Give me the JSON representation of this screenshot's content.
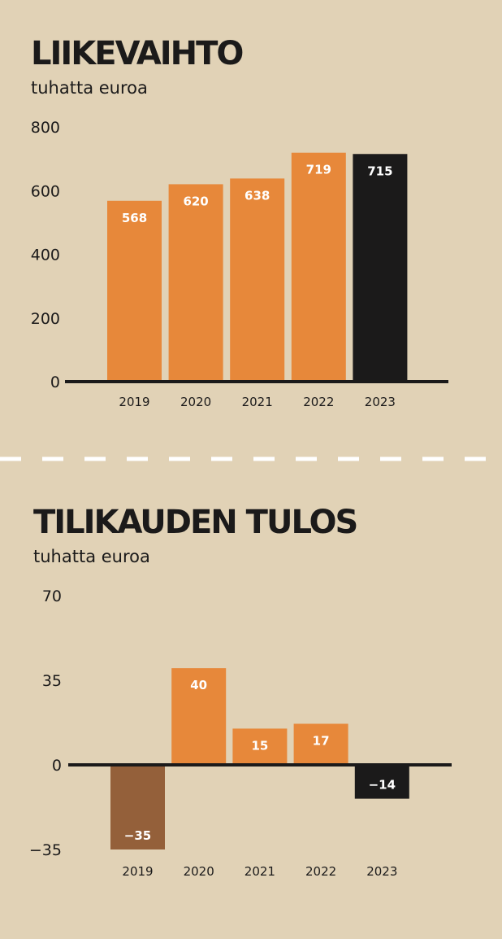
{
  "chart_data": [
    {
      "type": "bar",
      "title": "LIIKEVAIHTO",
      "subtitle": "tuhatta euroa",
      "categories": [
        "2019",
        "2020",
        "2021",
        "2022",
        "2023"
      ],
      "values": [
        568,
        620,
        638,
        719,
        715
      ],
      "data_labels": [
        "568",
        "620",
        "638",
        "719",
        "715"
      ],
      "yticks": [
        "0",
        "200",
        "400",
        "600",
        "800"
      ],
      "ylim": [
        0,
        800
      ],
      "grid": false,
      "colors": {
        "bar": "#e7883a",
        "highlight": "#1b1a1a",
        "label": "#ffffff",
        "axis": "#1b1a1a"
      },
      "highlight_last": true
    },
    {
      "type": "bar",
      "title": "TILIKAUDEN TULOS",
      "subtitle": "tuhatta euroa",
      "categories": [
        "2019",
        "2020",
        "2021",
        "2022",
        "2023"
      ],
      "values": [
        -35,
        40,
        15,
        17,
        -14
      ],
      "data_labels": [
        "−35",
        "40",
        "15",
        "17",
        "−14"
      ],
      "yticks": [
        "−35",
        "0",
        "35",
        "70"
      ],
      "ylim": [
        -35,
        70
      ],
      "grid": false,
      "colors": {
        "bar": "#e7883a",
        "negative": "#94603a",
        "highlight": "#1b1a1a",
        "label": "#ffffff",
        "axis": "#1b1a1a"
      },
      "highlight_last": true
    }
  ],
  "style": {
    "background": "#e1d2b6",
    "divider": "#ffffff"
  }
}
